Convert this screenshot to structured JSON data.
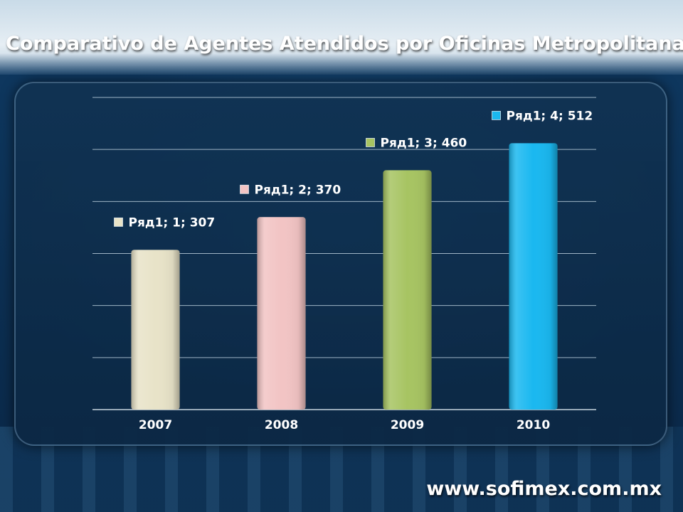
{
  "title": "Comparativo de Agentes Atendidos por Oficinas Metropolitanas",
  "footer": {
    "url": "www.sofimex.com.mx"
  },
  "chart_data": {
    "type": "bar",
    "title": "",
    "categories": [
      "2007",
      "2008",
      "2009",
      "2010"
    ],
    "series": [
      {
        "name": "Ряд1",
        "values": [
          307,
          370,
          460,
          512
        ]
      }
    ],
    "data_labels": [
      "Ряд1; 1; 307",
      "Ряд1; 2; 370",
      "Ряд1; 3; 460",
      "Ряд1; 4; 512"
    ],
    "bar_colors": [
      "#e8e3c8",
      "#f2c4c4",
      "#a7c462",
      "#1ab8f0"
    ],
    "ylim": [
      0,
      600
    ],
    "y_gridline_step": 100,
    "grid": true,
    "legend": "none",
    "xlabel": "",
    "ylabel": ""
  }
}
